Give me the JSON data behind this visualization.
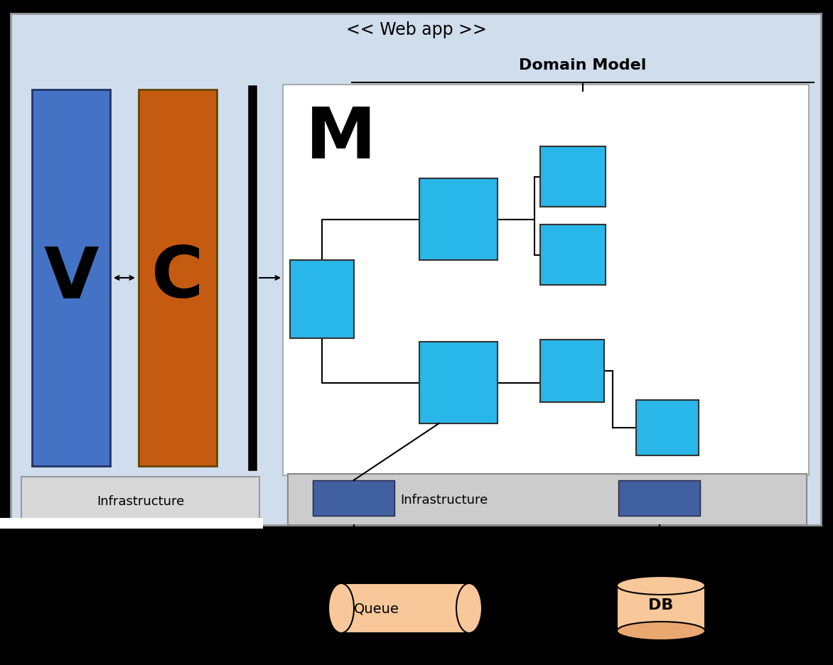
{
  "bg_color": "#000000",
  "webapp_bg": "#cfdded",
  "webapp_border": "#999999",
  "domain_model_label": "Domain Model",
  "webapp_label": "<< Web app >>",
  "v_color": "#4472c4",
  "c_color": "#c55a11",
  "m_box_bg": "#ffffff",
  "cyan_color": "#29b6e8",
  "blue_dark": "#4060a0",
  "infra_bg": "#cccccc",
  "queue_color": "#f8c89a",
  "db_color": "#f8c89a",
  "queue_label": "Queue",
  "db_label": "DB",
  "infra_label_left": "Infrastructure",
  "infra_label_right": "Infrastructure",
  "v_label": "V",
  "c_label": "C",
  "m_label": "M"
}
